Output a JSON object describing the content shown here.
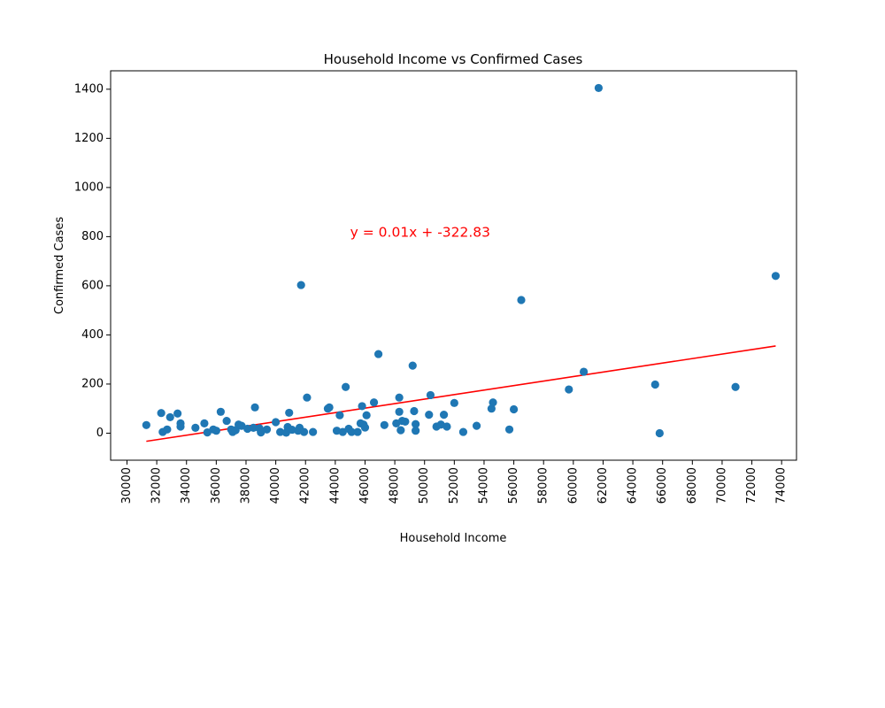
{
  "chart_data": {
    "type": "scatter",
    "title": "Household Income vs Confirmed Cases",
    "xlabel": "Household Income",
    "ylabel": "Confirmed Cases",
    "xlim": [
      28900,
      75000
    ],
    "ylim": [
      -110,
      1475
    ],
    "x_ticks": [
      30000,
      32000,
      34000,
      36000,
      38000,
      40000,
      42000,
      44000,
      46000,
      48000,
      50000,
      52000,
      54000,
      56000,
      58000,
      60000,
      62000,
      64000,
      66000,
      68000,
      70000,
      72000,
      74000
    ],
    "x_tick_labels": [
      "30000",
      "32000",
      "34000",
      "36000",
      "38000",
      "40000",
      "42000",
      "44000",
      "46000",
      "48000",
      "50000",
      "52000",
      "54000",
      "56000",
      "58000",
      "60000",
      "62000",
      "64000",
      "66000",
      "68000",
      "70000",
      "72000",
      "74000"
    ],
    "y_ticks": [
      0,
      200,
      400,
      600,
      800,
      1000,
      1200,
      1400
    ],
    "y_tick_labels": [
      "0",
      "200",
      "400",
      "600",
      "800",
      "1000",
      "1200",
      "1400"
    ],
    "grid": false,
    "marker_color": "#1f77b4",
    "points": [
      {
        "x": 31300,
        "y": 33
      },
      {
        "x": 32300,
        "y": 82
      },
      {
        "x": 32400,
        "y": 5
      },
      {
        "x": 32700,
        "y": 15
      },
      {
        "x": 32900,
        "y": 65
      },
      {
        "x": 33400,
        "y": 80
      },
      {
        "x": 33600,
        "y": 40
      },
      {
        "x": 33600,
        "y": 27
      },
      {
        "x": 34600,
        "y": 22
      },
      {
        "x": 35200,
        "y": 40
      },
      {
        "x": 35400,
        "y": 3
      },
      {
        "x": 35800,
        "y": 15
      },
      {
        "x": 36000,
        "y": 10
      },
      {
        "x": 36300,
        "y": 87
      },
      {
        "x": 36700,
        "y": 50
      },
      {
        "x": 37000,
        "y": 15
      },
      {
        "x": 37100,
        "y": 5
      },
      {
        "x": 37300,
        "y": 12
      },
      {
        "x": 37500,
        "y": 35
      },
      {
        "x": 37700,
        "y": 30
      },
      {
        "x": 38100,
        "y": 18
      },
      {
        "x": 38500,
        "y": 22
      },
      {
        "x": 38600,
        "y": 105
      },
      {
        "x": 38900,
        "y": 20
      },
      {
        "x": 39000,
        "y": 3
      },
      {
        "x": 39400,
        "y": 15
      },
      {
        "x": 40000,
        "y": 45
      },
      {
        "x": 40300,
        "y": 5
      },
      {
        "x": 40700,
        "y": 2
      },
      {
        "x": 40800,
        "y": 25
      },
      {
        "x": 40900,
        "y": 83
      },
      {
        "x": 41100,
        "y": 14
      },
      {
        "x": 41500,
        "y": 10
      },
      {
        "x": 41600,
        "y": 22
      },
      {
        "x": 41700,
        "y": 603
      },
      {
        "x": 41900,
        "y": 5
      },
      {
        "x": 42100,
        "y": 145
      },
      {
        "x": 42500,
        "y": 5
      },
      {
        "x": 43500,
        "y": 100
      },
      {
        "x": 43600,
        "y": 105
      },
      {
        "x": 44100,
        "y": 10
      },
      {
        "x": 44300,
        "y": 73
      },
      {
        "x": 44500,
        "y": 5
      },
      {
        "x": 44700,
        "y": 188
      },
      {
        "x": 44900,
        "y": 18
      },
      {
        "x": 45100,
        "y": 5
      },
      {
        "x": 45500,
        "y": 5
      },
      {
        "x": 45700,
        "y": 40
      },
      {
        "x": 45800,
        "y": 110
      },
      {
        "x": 45900,
        "y": 35
      },
      {
        "x": 46000,
        "y": 23
      },
      {
        "x": 46100,
        "y": 73
      },
      {
        "x": 46600,
        "y": 125
      },
      {
        "x": 46900,
        "y": 322
      },
      {
        "x": 47300,
        "y": 33
      },
      {
        "x": 48100,
        "y": 40
      },
      {
        "x": 48300,
        "y": 87
      },
      {
        "x": 48300,
        "y": 145
      },
      {
        "x": 48400,
        "y": 12
      },
      {
        "x": 48500,
        "y": 50
      },
      {
        "x": 48700,
        "y": 47
      },
      {
        "x": 49200,
        "y": 275
      },
      {
        "x": 49300,
        "y": 90
      },
      {
        "x": 49400,
        "y": 37
      },
      {
        "x": 49400,
        "y": 10
      },
      {
        "x": 50300,
        "y": 75
      },
      {
        "x": 50400,
        "y": 155
      },
      {
        "x": 50800,
        "y": 27
      },
      {
        "x": 51100,
        "y": 35
      },
      {
        "x": 51300,
        "y": 75
      },
      {
        "x": 51500,
        "y": 27
      },
      {
        "x": 52000,
        "y": 123
      },
      {
        "x": 52600,
        "y": 5
      },
      {
        "x": 53500,
        "y": 30
      },
      {
        "x": 54500,
        "y": 100
      },
      {
        "x": 54600,
        "y": 125
      },
      {
        "x": 55700,
        "y": 15
      },
      {
        "x": 56000,
        "y": 97
      },
      {
        "x": 56500,
        "y": 542
      },
      {
        "x": 59700,
        "y": 178
      },
      {
        "x": 60700,
        "y": 250
      },
      {
        "x": 61700,
        "y": 1405
      },
      {
        "x": 65500,
        "y": 198
      },
      {
        "x": 65800,
        "y": 0
      },
      {
        "x": 70900,
        "y": 188
      },
      {
        "x": 73600,
        "y": 640
      }
    ],
    "regression": {
      "color": "#ff0000",
      "x_start": 31300,
      "x_end": 73600,
      "slope": 0.01,
      "intercept": -322.83,
      "y_start": -33,
      "y_end": 355
    },
    "annotation": {
      "text": "y = 0.01x + -322.83",
      "color": "#ff0000",
      "x": 45000,
      "y": 800
    }
  }
}
